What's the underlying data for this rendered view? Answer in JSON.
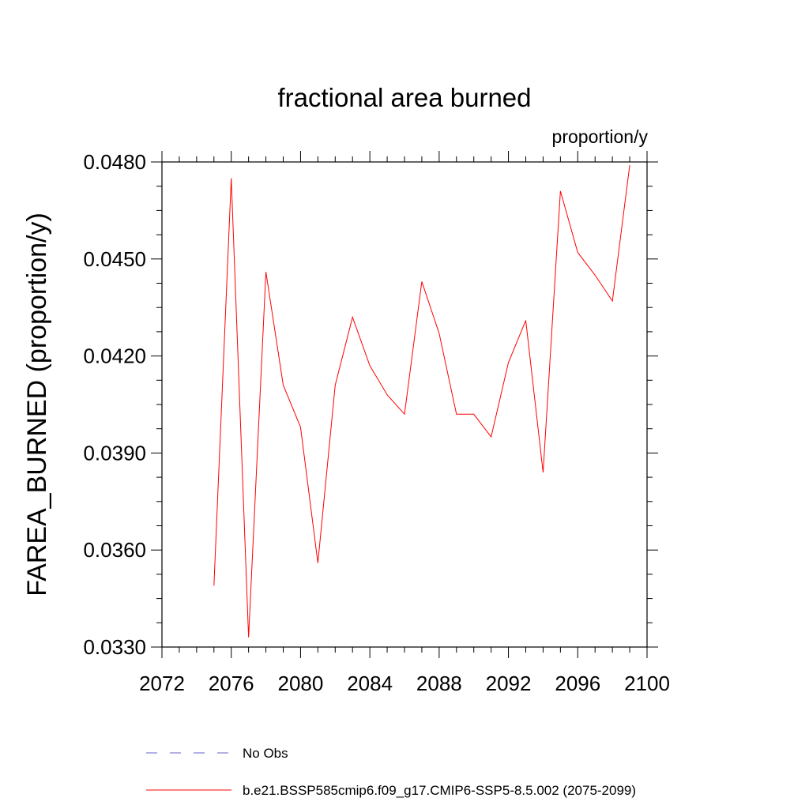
{
  "chart_data": {
    "type": "line",
    "title": "fractional area burned",
    "units_label": "proportion/y",
    "xlabel": "",
    "ylabel": "FAREA_BURNED  (proportion/y)",
    "xlim": [
      2072,
      2100
    ],
    "ylim": [
      0.033,
      0.048
    ],
    "x_ticks": [
      "2072",
      "2076",
      "2080",
      "2084",
      "2088",
      "2092",
      "2096",
      "2100"
    ],
    "y_ticks": [
      "0.0330",
      "0.0360",
      "0.0390",
      "0.0420",
      "0.0450",
      "0.0480"
    ],
    "grid": false,
    "legend_position": "bottom",
    "series": [
      {
        "name": "b.e21.BSSP585cmip6.f09_g17.CMIP6-SSP5-8.5.002 (2075-2099)",
        "color": "#ff0000",
        "style": "solid",
        "x": [
          2075,
          2076,
          2077,
          2078,
          2079,
          2080,
          2081,
          2082,
          2083,
          2084,
          2085,
          2086,
          2087,
          2088,
          2089,
          2090,
          2091,
          2092,
          2093,
          2094,
          2095,
          2096,
          2097,
          2098,
          2099
        ],
        "values": [
          0.0349,
          0.0475,
          0.0333,
          0.0446,
          0.0411,
          0.0398,
          0.0356,
          0.0411,
          0.0432,
          0.0417,
          0.0408,
          0.0402,
          0.0443,
          0.0427,
          0.0402,
          0.0402,
          0.0395,
          0.0418,
          0.0431,
          0.0384,
          0.0471,
          0.0452,
          0.0445,
          0.0437,
          0.0479
        ]
      },
      {
        "name": "No Obs",
        "color": "#6666cc",
        "style": "dashed",
        "x": [],
        "values": []
      }
    ]
  }
}
